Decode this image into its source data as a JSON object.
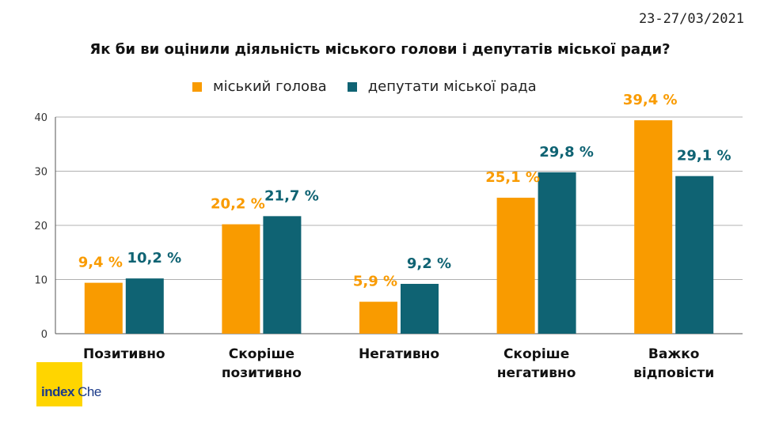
{
  "date": "23-27/03/2021",
  "chart_data": {
    "type": "bar",
    "title": "Як би ви оцінили діяльність міського голови і депутатів міської ради?",
    "categories": [
      [
        "Позитивно"
      ],
      [
        "Скоріше",
        "позитивно"
      ],
      [
        "Негативно"
      ],
      [
        "Скоріше",
        "негативно"
      ],
      [
        "Важко",
        "відповісти"
      ]
    ],
    "series": [
      {
        "name": "міський голова",
        "color": "#f99b00",
        "values": [
          9.4,
          20.2,
          5.9,
          25.1,
          39.4
        ],
        "labels": [
          "9,4 %",
          "20,2 %",
          "5,9 %",
          "25,1 %",
          "39,4 %"
        ]
      },
      {
        "name": "депутати міської рада",
        "color": "#0f6373",
        "values": [
          10.2,
          21.7,
          9.2,
          29.8,
          29.1
        ],
        "labels": [
          "10,2 %",
          "21,7 %",
          "9,2 %",
          "29,8 %",
          "29,1 %"
        ]
      }
    ],
    "ylim": [
      0,
      40
    ],
    "yticks": [
      0,
      10,
      20,
      30,
      40
    ],
    "grid": true,
    "legend": "top"
  },
  "logo": {
    "part1": "index",
    "part2": "Che"
  }
}
